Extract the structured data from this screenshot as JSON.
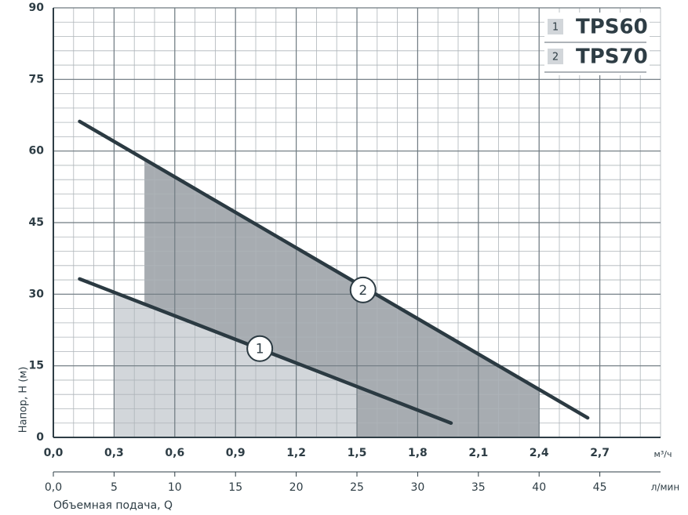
{
  "chart_data": {
    "type": "line",
    "y_label": "Напор, H (м)",
    "x_unit": "м³/ч",
    "x2_unit": "л/мин",
    "x2_label": "Объемная подача, Q",
    "xlim": [
      0,
      3.0
    ],
    "xticks": [
      {
        "value": 0,
        "label": "0,0"
      },
      {
        "value": 0.3,
        "label": "0,3"
      },
      {
        "value": 0.6,
        "label": "0,6"
      },
      {
        "value": 0.9,
        "label": "0,9"
      },
      {
        "value": 1.2,
        "label": "1,2"
      },
      {
        "value": 1.5,
        "label": "1,5"
      },
      {
        "value": 1.8,
        "label": "1,8"
      },
      {
        "value": 2.1,
        "label": "2,1"
      },
      {
        "value": 2.4,
        "label": "2,4"
      },
      {
        "value": 2.7,
        "label": "2,7"
      }
    ],
    "x2lim": [
      0,
      50
    ],
    "x2ticks": [
      {
        "value": 0,
        "label": "0,0"
      },
      5,
      10,
      15,
      20,
      25,
      30,
      35,
      40,
      45
    ],
    "ylim": [
      0,
      90
    ],
    "yticks": [
      0,
      15,
      30,
      45,
      60,
      75,
      90
    ],
    "grid": true,
    "minor_step": {
      "x": 0.1,
      "y": 3
    },
    "legend": "top-right",
    "series": [
      {
        "name": "TPS60",
        "label": "1",
        "color": "#2b3a42",
        "fill": "#d2d6da",
        "x": [
          0.13,
          1.965
        ],
        "values": [
          33.2,
          3.0
        ],
        "range": [
          0.3,
          1.5
        ],
        "marker_x": 1.02,
        "marker_y": 18.6
      },
      {
        "name": "TPS70",
        "label": "2",
        "color": "#2b3a42",
        "fill": "#a7acb1",
        "x": [
          0.13,
          2.64
        ],
        "values": [
          66.2,
          4.1
        ],
        "range": [
          0.45,
          2.4
        ],
        "marker_x": 1.53,
        "marker_y": 30.9
      }
    ]
  }
}
